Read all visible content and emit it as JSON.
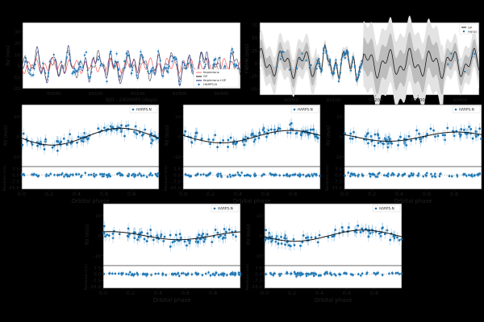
{
  "figure": {
    "description": "Radial velocity analysis figure: time series with GP + Keplerian fit, FWHM GP fit, and five phase-folded RV panels with residuals.",
    "colors": {
      "background": "#000000",
      "panel": "#ffffff",
      "data": "#1f77b4",
      "data_light": "#8fbfe0",
      "keplerian": "#ff6b6b",
      "gp": "#1a1a1a",
      "combined": "#1e2a78",
      "band_dark": "#bdbdbd",
      "band_light": "#e3e3e3"
    }
  },
  "chart_data": [
    {
      "id": "rv-timeseries",
      "type": "line",
      "title": "",
      "xlabel": "BJD - 2400000 (days)",
      "ylabel": "RV (m/s)",
      "xlim": [
        59925,
        60445
      ],
      "ylim": [
        -20,
        38
      ],
      "xticks": [
        60000,
        60100,
        60200,
        60300,
        60400
      ],
      "yticks": [
        -20,
        -10,
        0,
        10,
        20,
        30
      ],
      "legend": {
        "position": "bottom-right",
        "entries": [
          "Keplerians",
          "GP",
          "Keplerians+GP",
          "HARPS-N"
        ]
      },
      "series": [
        {
          "name": "Keplerians",
          "style": "line",
          "color": "#ff6b6b"
        },
        {
          "name": "GP",
          "style": "line",
          "color": "#1a1a1a"
        },
        {
          "name": "Keplerians+GP",
          "style": "line",
          "color": "#1e2a78"
        },
        {
          "name": "HARPS-N",
          "style": "points-errorbars",
          "color": "#1f77b4"
        }
      ]
    },
    {
      "id": "fwhm-timeseries",
      "type": "line",
      "title": "",
      "xlabel": "BJD - 2400000 (days)",
      "ylabel": "FWHM (m/s)",
      "xlim": [
        59925,
        60445
      ],
      "ylim": [
        -62,
        80
      ],
      "xticks": [
        60000,
        60100,
        60200,
        60300,
        60400
      ],
      "yticks": [
        -50,
        -25,
        0,
        25,
        50,
        75
      ],
      "legend": {
        "position": "top-right",
        "entries": [
          "GP",
          "Harps"
        ]
      },
      "series": [
        {
          "name": "GP",
          "style": "line-with-bands",
          "color": "#1a1a1a"
        },
        {
          "name": "Harps",
          "style": "points-errorbars",
          "color": "#1f77b4"
        }
      ]
    },
    {
      "id": "phase-1",
      "type": "scatter",
      "xlabel": "Orbital phase",
      "ylabel": "RV (m/s)",
      "res_label": "Residuals (m/s)",
      "xlim": [
        0,
        1
      ],
      "ylim": [
        -15,
        16
      ],
      "yticks": [
        -10,
        0,
        10
      ],
      "res_ylim": [
        -17,
        10
      ],
      "res_yticks": [
        "7.5",
        "0.0",
        "-7.5",
        "-15.0"
      ],
      "xticks": [
        "0.0",
        "0.2",
        "0.4",
        "0.6",
        "0.8"
      ],
      "legend": "HARPS-N",
      "model_amplitude": 4.2,
      "model_phase": 0.72
    },
    {
      "id": "phase-2",
      "type": "scatter",
      "xlabel": "Orbital phase",
      "ylabel": "RV (m/s)",
      "res_label": "Residuals (m/s)",
      "xlim": [
        0,
        1
      ],
      "ylim": [
        -15,
        16
      ],
      "yticks": [
        -10,
        0,
        10
      ],
      "res_ylim": [
        -17,
        10
      ],
      "res_yticks": [
        "7.5",
        "0.0",
        "-7.5",
        "-15.0"
      ],
      "xticks": [
        "0.0",
        "0.2",
        "0.4",
        "0.6",
        "0.8"
      ],
      "legend": "HARPS-N",
      "model_amplitude": 3.1,
      "model_phase": 0.78
    },
    {
      "id": "phase-3",
      "type": "scatter",
      "xlabel": "Orbital phase",
      "ylabel": "RV (m/s)",
      "res_label": "Residuals (m/s)",
      "xlim": [
        0,
        1
      ],
      "ylim": [
        -15,
        16
      ],
      "yticks": [
        -10,
        0,
        10
      ],
      "res_ylim": [
        -17,
        10
      ],
      "res_yticks": [
        "7.5",
        "0.0",
        "-7.5",
        "-15.0"
      ],
      "xticks": [
        "0.0",
        "0.2",
        "0.4",
        "0.6",
        "0.8"
      ],
      "legend": "HARPS-N",
      "model_amplitude": 2.3,
      "model_phase": 0.82
    },
    {
      "id": "phase-4",
      "type": "scatter",
      "xlabel": "Orbital phase",
      "ylabel": "RV (m/s)",
      "res_label": "Residuals (m/s)",
      "xlim": [
        0,
        1
      ],
      "ylim": [
        -15,
        16
      ],
      "yticks": [
        -10,
        0,
        10
      ],
      "res_ylim": [
        -17,
        10
      ],
      "res_yticks": [
        "7.5",
        "0.0",
        "-7.5",
        "-15.0"
      ],
      "xticks": [
        "0.0",
        "0.2",
        "0.4",
        "0.6",
        "0.8"
      ],
      "legend": "HARPS-N",
      "model_amplitude": 2.0,
      "model_phase": 0.05
    },
    {
      "id": "phase-5",
      "type": "scatter",
      "xlabel": "Orbital phase",
      "ylabel": "RV (m/s)",
      "res_label": "Residuals (m/s)",
      "xlim": [
        0,
        1
      ],
      "ylim": [
        -15,
        16
      ],
      "yticks": [
        -10,
        0,
        10
      ],
      "res_ylim": [
        -17,
        10
      ],
      "res_yticks": [
        "7.5",
        "0.0",
        "-7.5",
        "-15.0"
      ],
      "xticks": [
        "0.0",
        "0.2",
        "0.4",
        "0.6",
        "0.8"
      ],
      "legend": "HARPS-N",
      "model_amplitude": 2.8,
      "model_phase": 0.72
    }
  ]
}
